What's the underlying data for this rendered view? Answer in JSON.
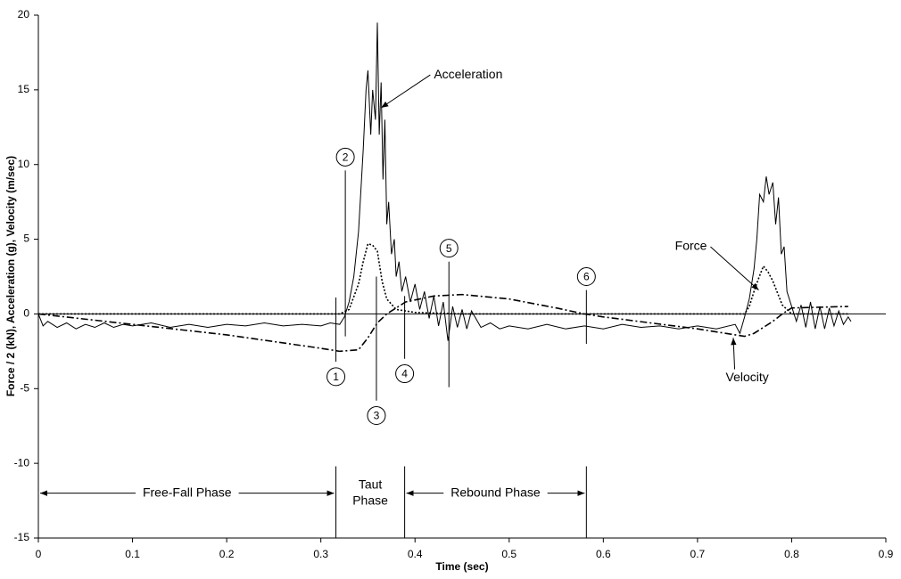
{
  "chart_data": {
    "type": "line",
    "xlabel": "Time (sec)",
    "ylabel": "Force / 2 (kN), Acceleration (g), Velocity (m/sec)",
    "xlim": [
      0,
      0.9
    ],
    "xticks": [
      0,
      0.1,
      0.2,
      0.3,
      0.4,
      0.5,
      0.6,
      0.7,
      0.8,
      0.9
    ],
    "ylim": [
      -15,
      20
    ],
    "yticks": [
      -15,
      -10,
      -5,
      0,
      5,
      10,
      15,
      20
    ],
    "series": [
      {
        "name": "Acceleration",
        "color": "#000000",
        "style": "solid",
        "x": [
          0,
          0.005,
          0.01,
          0.02,
          0.03,
          0.04,
          0.05,
          0.06,
          0.07,
          0.08,
          0.09,
          0.1,
          0.12,
          0.14,
          0.16,
          0.18,
          0.2,
          0.22,
          0.24,
          0.26,
          0.28,
          0.3,
          0.31,
          0.32,
          0.325,
          0.33,
          0.335,
          0.34,
          0.345,
          0.348,
          0.35,
          0.353,
          0.355,
          0.358,
          0.36,
          0.362,
          0.364,
          0.366,
          0.368,
          0.37,
          0.372,
          0.375,
          0.378,
          0.38,
          0.383,
          0.386,
          0.39,
          0.395,
          0.4,
          0.405,
          0.41,
          0.415,
          0.42,
          0.425,
          0.43,
          0.435,
          0.44,
          0.445,
          0.45,
          0.455,
          0.46,
          0.47,
          0.48,
          0.49,
          0.5,
          0.52,
          0.54,
          0.56,
          0.58,
          0.6,
          0.62,
          0.64,
          0.66,
          0.68,
          0.7,
          0.72,
          0.74,
          0.745,
          0.75,
          0.755,
          0.76,
          0.763,
          0.766,
          0.77,
          0.773,
          0.776,
          0.78,
          0.783,
          0.786,
          0.789,
          0.792,
          0.795,
          0.8,
          0.805,
          0.81,
          0.815,
          0.82,
          0.825,
          0.83,
          0.835,
          0.84,
          0.845,
          0.85,
          0.855,
          0.86,
          0.863
        ],
        "values": [
          0,
          -0.8,
          -0.5,
          -0.9,
          -0.6,
          -1,
          -0.7,
          -0.9,
          -0.6,
          -0.9,
          -0.7,
          -0.8,
          -0.6,
          -0.9,
          -0.7,
          -0.9,
          -0.7,
          -0.8,
          -0.6,
          -0.8,
          -0.7,
          -0.8,
          -0.6,
          -0.7,
          -0.2,
          0.8,
          2.5,
          5.5,
          11,
          15,
          16.3,
          12,
          15,
          13,
          19.5,
          12,
          15.5,
          9,
          13,
          6,
          7.5,
          4,
          5,
          2.5,
          3.5,
          1.5,
          2.5,
          0.8,
          2,
          0.3,
          1.5,
          -0.3,
          1.2,
          -0.8,
          0.8,
          -1.8,
          0.5,
          -0.9,
          0.3,
          -1,
          0.2,
          -0.9,
          -0.6,
          -1,
          -0.8,
          -1,
          -0.7,
          -1,
          -0.8,
          -1,
          -0.7,
          -0.9,
          -0.8,
          -1,
          -0.8,
          -1,
          -0.7,
          -1.3,
          -0.2,
          1,
          3,
          5,
          8,
          7.5,
          9.2,
          8,
          8.8,
          6,
          7.8,
          4,
          4.5,
          1.5,
          0.5,
          -0.5,
          0.6,
          -0.9,
          0.8,
          -1,
          0.5,
          -1,
          0.4,
          -0.8,
          0.2,
          -0.7,
          -0.2,
          -0.5
        ]
      },
      {
        "name": "Force",
        "color": "#000000",
        "style": "dotted",
        "x": [
          0,
          0.1,
          0.2,
          0.3,
          0.32,
          0.33,
          0.34,
          0.345,
          0.35,
          0.355,
          0.36,
          0.365,
          0.37,
          0.38,
          0.4,
          0.45,
          0.5,
          0.6,
          0.7,
          0.75,
          0.755,
          0.76,
          0.765,
          0.77,
          0.775,
          0.78,
          0.79,
          0.8,
          0.86
        ],
        "values": [
          0,
          0,
          0,
          0,
          0,
          0.3,
          2,
          3.5,
          4.7,
          4.6,
          4.2,
          2.2,
          1,
          0.3,
          0.1,
          0,
          0,
          0,
          0,
          0,
          0.5,
          1.5,
          2.4,
          3.2,
          2.8,
          2.2,
          0.6,
          0,
          0
        ]
      },
      {
        "name": "Velocity",
        "color": "#000000",
        "style": "dashdot",
        "x": [
          0,
          0.1,
          0.2,
          0.3,
          0.32,
          0.34,
          0.35,
          0.36,
          0.37,
          0.39,
          0.42,
          0.45,
          0.5,
          0.55,
          0.58,
          0.6,
          0.65,
          0.7,
          0.75,
          0.76,
          0.78,
          0.79,
          0.8,
          0.86
        ],
        "values": [
          0,
          -0.7,
          -1.4,
          -2.3,
          -2.5,
          -2.4,
          -1.6,
          -0.6,
          0,
          0.8,
          1.2,
          1.3,
          1,
          0.4,
          0,
          -0.2,
          -0.6,
          -1,
          -1.5,
          -1.3,
          -0.5,
          0,
          0.4,
          0.5
        ]
      }
    ],
    "annotations": [
      {
        "text": "Acceleration",
        "x": 0.42,
        "y": 16,
        "target_x": 0.364,
        "target_y": 13.8
      },
      {
        "text": "Force",
        "x": 0.71,
        "y": 4.5,
        "target_x": 0.765,
        "target_y": 1.6
      },
      {
        "text": "Velocity",
        "x": 0.73,
        "y": -4.3,
        "target_x": 0.738,
        "target_y": -1.6
      }
    ],
    "markers": [
      {
        "label": "1",
        "x": 0.316
      },
      {
        "label": "2",
        "x": 0.326
      },
      {
        "label": "3",
        "x": 0.359
      },
      {
        "label": "4",
        "x": 0.389
      },
      {
        "label": "5",
        "x": 0.436
      },
      {
        "label": "6",
        "x": 0.582
      }
    ],
    "phases": [
      {
        "label": "Free-Fall Phase",
        "start": 0,
        "end": 0.316
      },
      {
        "label": "Taut Phase",
        "start": 0.316,
        "end": 0.389
      },
      {
        "label": "Rebound Phase",
        "start": 0.389,
        "end": 0.582
      }
    ]
  }
}
